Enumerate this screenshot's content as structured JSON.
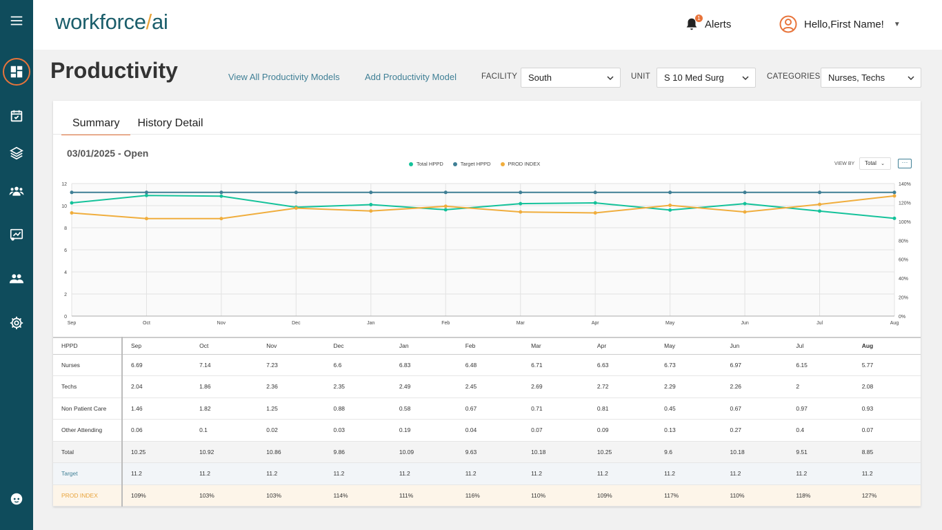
{
  "app": {
    "logo_main": "workforce",
    "logo_slash": "/",
    "logo_suffix": "ai"
  },
  "header": {
    "alerts_label": "Alerts",
    "alerts_count": "1",
    "greeting": "Hello,First Name!"
  },
  "page": {
    "title": "Productivity",
    "links": {
      "view_all": "View All Productivity Models",
      "add": "Add Productivity Model"
    },
    "filters": {
      "facility_label": "FACILITY",
      "facility_value": "South",
      "unit_label": "UNIT",
      "unit_value": "S 10 Med Surg",
      "categories_label": "CATEGORIES",
      "categories_value": "Nurses, Techs"
    }
  },
  "tabs": {
    "summary": "Summary",
    "history": "History Detail"
  },
  "period": "03/01/2025 - Open",
  "view_by": {
    "label": "VIEW BY",
    "value": "Total"
  },
  "colors": {
    "sidebar": "#0f4c5c",
    "accent": "#e8743b",
    "total": "#14c29a",
    "target": "#3f7f95",
    "prod": "#f0ad3c"
  },
  "chart_data": {
    "type": "line",
    "categories": [
      "Sep",
      "Oct",
      "Nov",
      "Dec",
      "Jan",
      "Feb",
      "Mar",
      "Apr",
      "May",
      "Jun",
      "Jul",
      "Aug"
    ],
    "series": [
      {
        "name": "Total HPPD",
        "axis": "left",
        "values": [
          10.25,
          10.92,
          10.86,
          9.86,
          10.09,
          9.63,
          10.18,
          10.25,
          9.6,
          10.18,
          9.51,
          8.85
        ]
      },
      {
        "name": "Target HPPD",
        "axis": "left",
        "values": [
          11.2,
          11.2,
          11.2,
          11.2,
          11.2,
          11.2,
          11.2,
          11.2,
          11.2,
          11.2,
          11.2,
          11.2
        ]
      },
      {
        "name": "PROD INDEX",
        "axis": "right",
        "values": [
          109,
          103,
          103,
          114,
          111,
          116,
          110,
          109,
          117,
          110,
          118,
          127
        ]
      }
    ],
    "ylim_left": [
      0,
      12
    ],
    "yticks_left": [
      "0",
      "2",
      "4",
      "6",
      "8",
      "10",
      "12"
    ],
    "ylim_right": [
      0,
      140
    ],
    "yticks_right": [
      "0%",
      "20%",
      "40%",
      "60%",
      "80%",
      "100%",
      "120%",
      "140%"
    ],
    "grid": true,
    "legend": "top-center"
  },
  "table": {
    "header": [
      "HPPD",
      "Sep",
      "Oct",
      "Nov",
      "Dec",
      "Jan",
      "Feb",
      "Mar",
      "Apr",
      "May",
      "Jun",
      "Jul",
      "Aug"
    ],
    "rows": [
      {
        "label": "Nurses",
        "values": [
          "6.69",
          "7.14",
          "7.23",
          "6.6",
          "6.83",
          "6.48",
          "6.71",
          "6.63",
          "6.73",
          "6.97",
          "6.15",
          "5.77"
        ]
      },
      {
        "label": "Techs",
        "values": [
          "2.04",
          "1.86",
          "2.36",
          "2.35",
          "2.49",
          "2.45",
          "2.69",
          "2.72",
          "2.29",
          "2.26",
          "2",
          "2.08"
        ]
      },
      {
        "label": "Non Patient Care",
        "values": [
          "1.46",
          "1.82",
          "1.25",
          "0.88",
          "0.58",
          "0.67",
          "0.71",
          "0.81",
          "0.45",
          "0.67",
          "0.97",
          "0.93"
        ]
      },
      {
        "label": "Other Attending",
        "values": [
          "0.06",
          "0.1",
          "0.02",
          "0.03",
          "0.19",
          "0.04",
          "0.07",
          "0.09",
          "0.13",
          "0.27",
          "0.4",
          "0.07"
        ]
      },
      {
        "label": "Total",
        "values": [
          "10.25",
          "10.92",
          "10.86",
          "9.86",
          "10.09",
          "9.63",
          "10.18",
          "10.25",
          "9.6",
          "10.18",
          "9.51",
          "8.85"
        ]
      },
      {
        "label": "Target",
        "values": [
          "11.2",
          "11.2",
          "11.2",
          "11.2",
          "11.2",
          "11.2",
          "11.2",
          "11.2",
          "11.2",
          "11.2",
          "11.2",
          "11.2"
        ]
      },
      {
        "label": "PROD INDEX",
        "values": [
          "109%",
          "103%",
          "103%",
          "114%",
          "111%",
          "116%",
          "110%",
          "109%",
          "117%",
          "110%",
          "118%",
          "127%"
        ]
      }
    ]
  }
}
